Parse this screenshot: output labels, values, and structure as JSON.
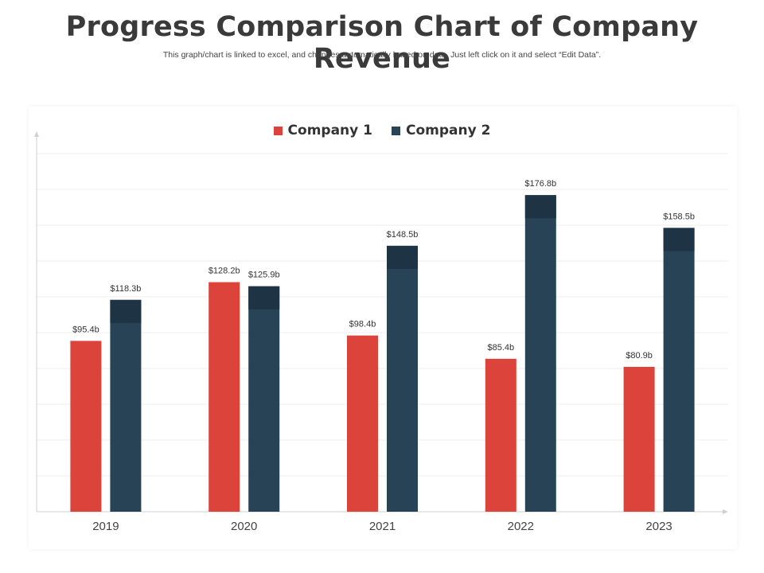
{
  "page": {
    "title": "Progress Comparison Chart of Company Revenue",
    "subtitle": "This graph/chart is linked to excel,  and changes automatically based on data. Just left click on it and select “Edit Data”."
  },
  "colors": {
    "company1": "#dc433b",
    "company2": "#294356",
    "company2_cap": "#1e3344",
    "grid": "#ececec",
    "axis": "#d0d0d0",
    "label": "#333333"
  },
  "chart_data": {
    "type": "bar",
    "title": "",
    "categories": [
      "2019",
      "2020",
      "2021",
      "2022",
      "2023"
    ],
    "series": [
      {
        "name": "Company 1",
        "values": [
          95.4,
          128.2,
          98.4,
          85.4,
          80.9
        ],
        "labels": [
          "$95.4b",
          "$128.2b",
          "$98.4b",
          "$85.4b",
          "$80.9b"
        ]
      },
      {
        "name": "Company 2",
        "values": [
          118.3,
          125.9,
          148.5,
          176.8,
          158.5
        ],
        "labels": [
          "$118.3b",
          "$125.9b",
          "$148.5b",
          "$176.8b",
          "$158.5b"
        ]
      }
    ],
    "xlabel": "",
    "ylabel": "",
    "ylim": [
      0,
      200
    ],
    "grid": true,
    "legend_position": "top-center"
  }
}
